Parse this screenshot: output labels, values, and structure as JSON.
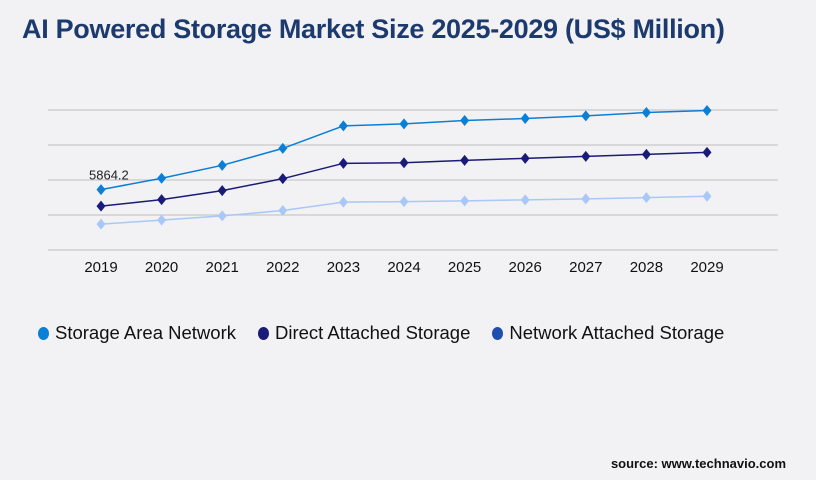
{
  "chart_data": {
    "type": "line",
    "title": "AI Powered Storage Market Size 2025-2029 (US$ Million)",
    "xlabel": "",
    "ylabel": "",
    "categories": [
      "2019",
      "2020",
      "2021",
      "2022",
      "2023",
      "2024",
      "2025",
      "2026",
      "2027",
      "2028",
      "2029"
    ],
    "ylim": [
      0,
      13600
    ],
    "y_axis_labels_visible": false,
    "grid": true,
    "legend_position": "bottom",
    "annotations": [
      {
        "series": "Storage Area Network",
        "category": "2019",
        "text": "5864.2"
      }
    ],
    "series": [
      {
        "name": "Storage Area Network",
        "color": "#0a7fd6",
        "marker_color": "#0a7fd6",
        "values": [
          5864.2,
          6967,
          8225,
          9870,
          12057,
          12251,
          12580,
          12773,
          13025,
          13354,
          13548
        ]
      },
      {
        "name": "Direct Attached Storage",
        "color": "#1a1a78",
        "marker_color": "#1a1a78",
        "values": [
          4258,
          4897,
          5767,
          6929,
          8419,
          8477,
          8709,
          8903,
          9096,
          9290,
          9483
        ]
      },
      {
        "name": "Network Attached Storage",
        "color": "#a9c8f7",
        "marker_color": "#1e4fb0",
        "values": [
          2516,
          2903,
          3319,
          3832,
          4645,
          4703,
          4771,
          4868,
          4964,
          5090,
          5226
        ]
      }
    ]
  },
  "source": "source: www.technavio.com"
}
